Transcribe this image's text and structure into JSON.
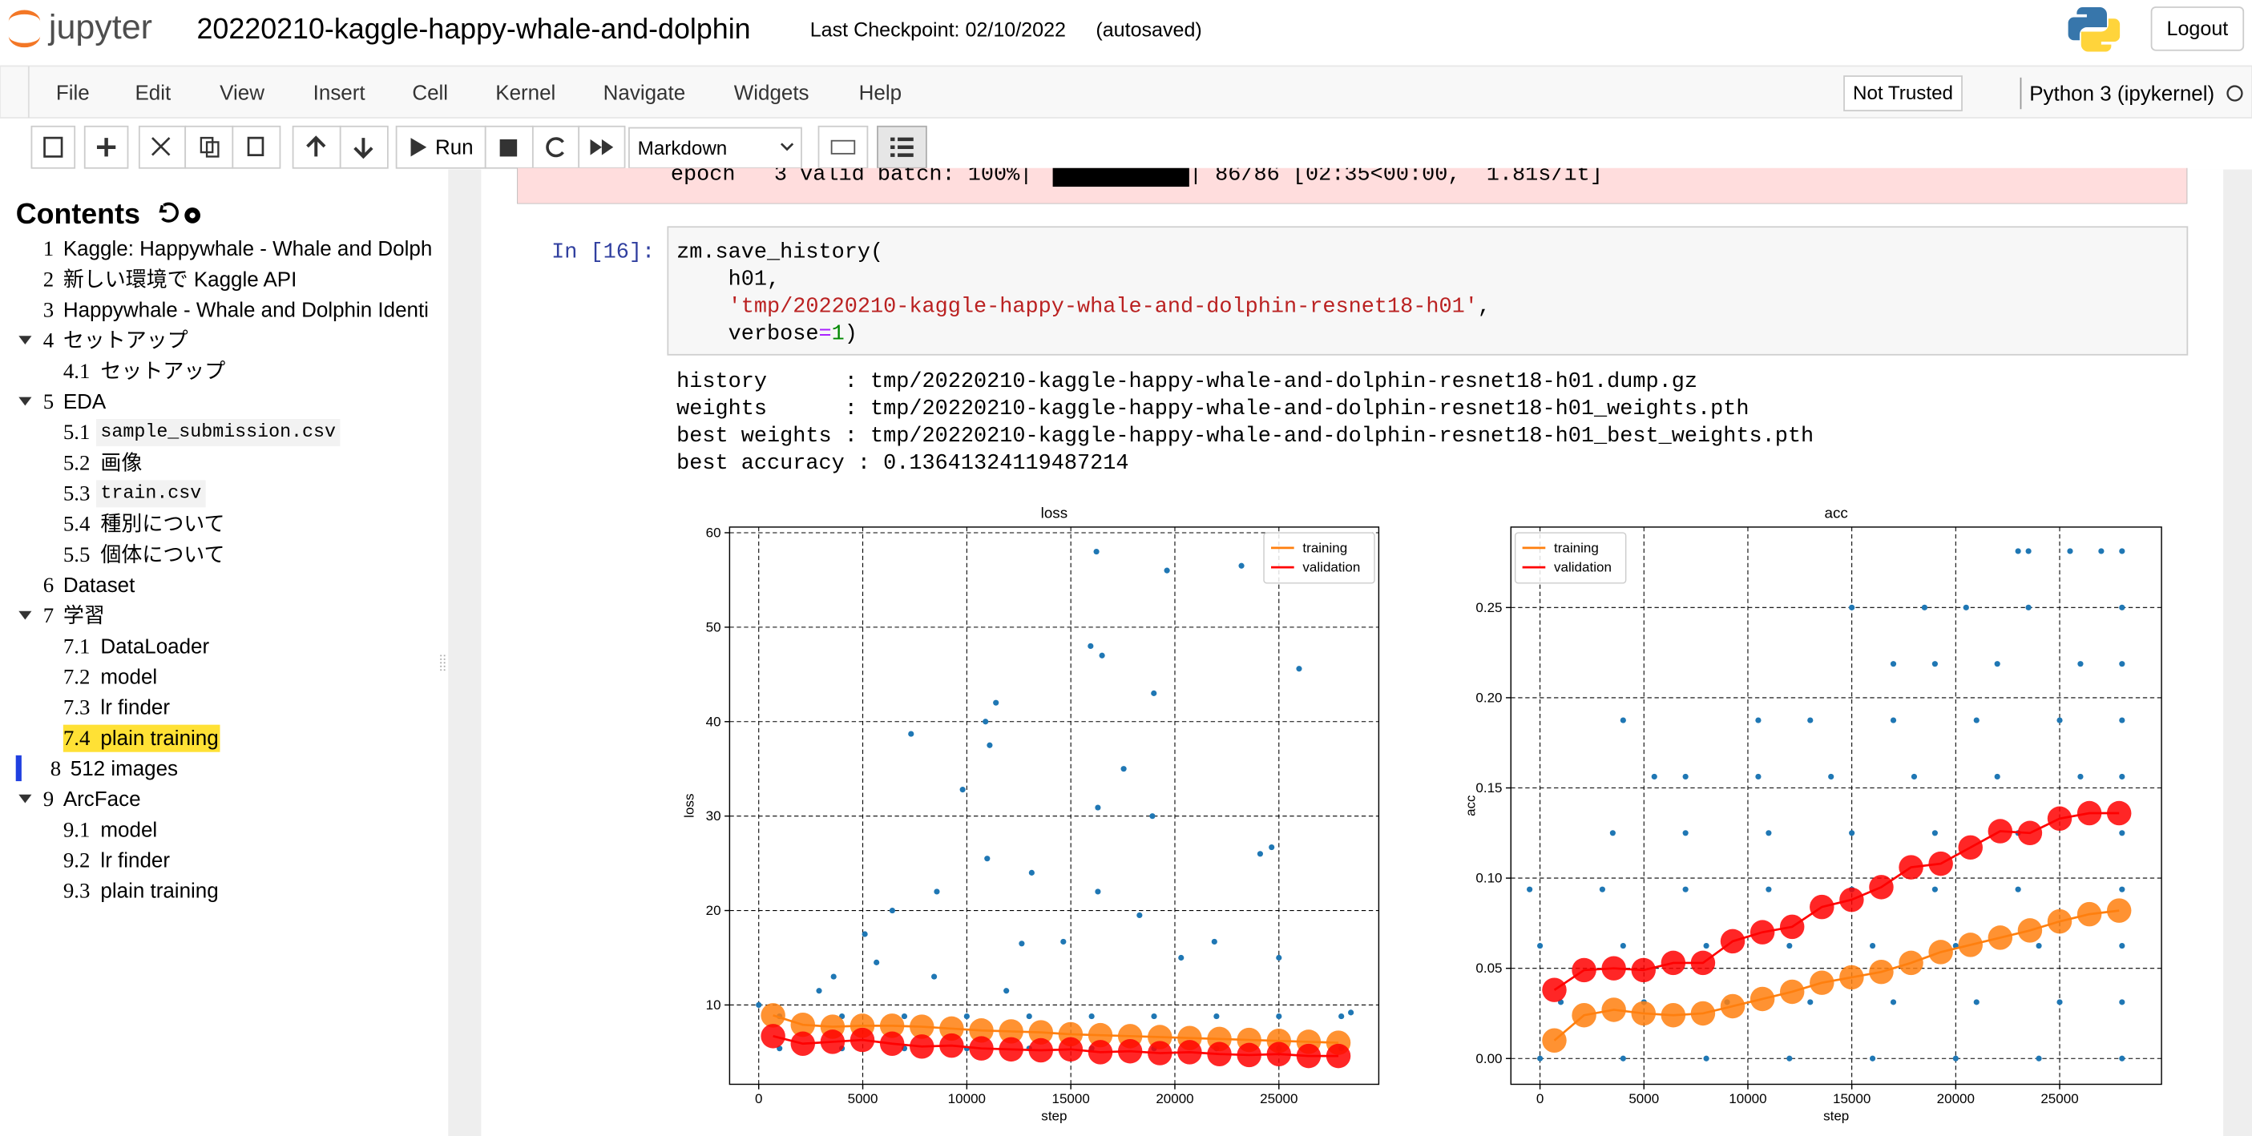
{
  "header": {
    "logo": "jupyter",
    "title": "20220210-kaggle-happy-whale-and-dolphin",
    "checkpoint": "Last Checkpoint: 02/10/2022",
    "autosaved": "(autosaved)",
    "logout": "Logout"
  },
  "menu": [
    "File",
    "Edit",
    "View",
    "Insert",
    "Cell",
    "Kernel",
    "Navigate",
    "Widgets",
    "Help"
  ],
  "status": {
    "trusted": "Not Trusted",
    "kernel": "Python 3 (ipykernel)"
  },
  "toolbar": {
    "run": "Run",
    "cell_type": "Markdown"
  },
  "toc": {
    "title": "Contents",
    "items": [
      {
        "num": "1",
        "label": "Kaggle: Happywhale - Whale and Dolph"
      },
      {
        "num": "2",
        "label": "新しい環境で Kaggle API"
      },
      {
        "num": "3",
        "label": "Happywhale - Whale and Dolphin Identi"
      },
      {
        "num": "4",
        "label": "セットアップ",
        "children": [
          {
            "num": "4.1",
            "label": "セットアップ"
          }
        ]
      },
      {
        "num": "5",
        "label": "EDA",
        "children": [
          {
            "num": "5.1",
            "label": "sample_submission.csv",
            "code": true
          },
          {
            "num": "5.2",
            "label": "画像"
          },
          {
            "num": "5.3",
            "label": "train.csv",
            "code": true
          },
          {
            "num": "5.4",
            "label": "種別について"
          },
          {
            "num": "5.5",
            "label": "個体について"
          }
        ]
      },
      {
        "num": "6",
        "label": "Dataset"
      },
      {
        "num": "7",
        "label": "学習",
        "children": [
          {
            "num": "7.1",
            "label": "DataLoader"
          },
          {
            "num": "7.2",
            "label": "model"
          },
          {
            "num": "7.3",
            "label": "lr finder"
          },
          {
            "num": "7.4",
            "label": "plain training",
            "highlight": true
          }
        ]
      },
      {
        "num": "8",
        "label": "512 images",
        "current": true
      },
      {
        "num": "9",
        "label": "ArcFace",
        "children": [
          {
            "num": "9.1",
            "label": "model"
          },
          {
            "num": "9.2",
            "label": "lr finder"
          },
          {
            "num": "9.3",
            "label": "plain training"
          }
        ]
      }
    ]
  },
  "prev_output": {
    "text": "epoch   3 valid batch: 100%|",
    "tail": "| 86/86 [02:35<00:00,  1.81s/it]"
  },
  "cell": {
    "prompt": "In [16]:",
    "code": [
      [
        "zm.save_history("
      ],
      [
        "h01,"
      ],
      [
        "'tmp/20220210-kaggle-happy-whale-and-dolphin-resnet18-h01'",
        ","
      ],
      [
        "verbose",
        "=",
        "1",
        ")"
      ]
    ]
  },
  "output": [
    "history      : tmp/20220210-kaggle-happy-whale-and-dolphin-resnet18-h01.dump.gz",
    "weights      : tmp/20220210-kaggle-happy-whale-and-dolphin-resnet18-h01_weights.pth",
    "best weights : tmp/20220210-kaggle-happy-whale-and-dolphin-resnet18-h01_best_weights.pth",
    "best accuracy : 0.13641324119487214"
  ],
  "chart_data": [
    {
      "type": "scatter",
      "title": "loss",
      "xlabel": "step",
      "ylabel": "loss",
      "xlim": [
        -1400,
        29800
      ],
      "ylim": [
        1.6,
        60.6
      ],
      "xticks": [
        0,
        5000,
        10000,
        15000,
        20000,
        25000
      ],
      "yticks": [
        10,
        20,
        30,
        40,
        50,
        60
      ],
      "grid": true,
      "legend": "upper right",
      "series": [
        {
          "style": "dots",
          "color": "#1f77b4",
          "x": [
            16230,
            19620,
            23200,
            25970,
            15950,
            16500,
            18990,
            11400,
            10900,
            7320,
            11100,
            17540,
            9800,
            16300,
            18920,
            24650,
            24100,
            10980,
            13120,
            8560,
            16300,
            18300,
            6420,
            12640,
            14640,
            20300,
            25000,
            21900,
            5100,
            3600,
            2900,
            5660,
            8430,
            11900,
            28460,
            0,
            1000,
            4000,
            7000,
            10000,
            13000,
            16000,
            19000,
            22000,
            25000,
            28000,
            1000,
            4000,
            7000,
            10000,
            13000,
            16000,
            19000,
            22000,
            25000,
            28000
          ],
          "values": [
            58,
            56,
            56.5,
            45.6,
            48,
            47,
            43,
            42,
            40,
            38.7,
            37.5,
            35,
            32.8,
            30.9,
            30,
            26.7,
            26,
            25.5,
            24,
            22,
            22,
            19.5,
            20,
            16.5,
            16.7,
            15,
            15,
            16.7,
            17.5,
            13,
            11.5,
            14.5,
            13,
            11.5,
            9.2,
            10,
            8.8,
            8.8,
            8.8,
            8.8,
            8.8,
            8.8,
            8.8,
            8.8,
            8.8,
            8.8,
            5.4,
            5.4,
            5.4,
            5.4,
            5.4,
            5.4,
            5.4,
            5.4,
            5.4,
            5.4
          ]
        },
        {
          "name": "training",
          "style": "line",
          "color": "#ff7f0e",
          "x": [
            690,
            2120,
            3550,
            4980,
            6410,
            7840,
            9270,
            10700,
            12130,
            13560,
            14990,
            16420,
            17850,
            19280,
            20710,
            22140,
            23570,
            25000,
            26430,
            27860
          ],
          "values": [
            8.9,
            7.9,
            7.7,
            7.8,
            7.8,
            7.7,
            7.5,
            7.3,
            7.2,
            7.1,
            6.9,
            6.8,
            6.7,
            6.6,
            6.5,
            6.4,
            6.3,
            6.2,
            6.1,
            6.0
          ]
        },
        {
          "name": "validation",
          "style": "line",
          "color": "#ff0000",
          "x": [
            690,
            2120,
            3550,
            4980,
            6410,
            7840,
            9270,
            10700,
            12130,
            13560,
            14990,
            16420,
            17850,
            19280,
            20710,
            22140,
            23570,
            25000,
            26430,
            27860
          ],
          "values": [
            6.7,
            5.9,
            6.1,
            6.3,
            5.9,
            5.6,
            5.7,
            5.4,
            5.3,
            5.2,
            5.3,
            5.0,
            5.1,
            4.9,
            5.0,
            4.8,
            4.7,
            4.8,
            4.6,
            4.6
          ]
        }
      ]
    },
    {
      "type": "scatter",
      "title": "acc",
      "xlabel": "step",
      "ylabel": "acc",
      "xlim": [
        -1400,
        29900
      ],
      "ylim": [
        -0.0143,
        0.2946
      ],
      "xticks": [
        0,
        5000,
        10000,
        15000,
        20000,
        25000
      ],
      "yticks": [
        {
          "value": 0,
          "label": "0.00"
        },
        {
          "value": 0.05,
          "label": "0.05"
        },
        {
          "value": 0.1,
          "label": "0.10"
        },
        {
          "value": 0.15,
          "label": "0.15"
        },
        {
          "value": 0.2,
          "label": "0.20"
        },
        {
          "value": 0.25,
          "label": "0.25"
        }
      ],
      "grid": true,
      "legend": "upper left",
      "series": [
        {
          "style": "dots",
          "color": "#1f77b4",
          "x": [
            0,
            4000,
            8000,
            12000,
            16000,
            20000,
            24000,
            28000,
            1000,
            5000,
            9000,
            13000,
            17000,
            21000,
            25000,
            28000,
            0,
            4000,
            8000,
            12000,
            16000,
            20000,
            24000,
            28000,
            -500,
            3000,
            7000,
            11000,
            15000,
            19000,
            23000,
            28000,
            3500,
            7000,
            11000,
            15000,
            19000,
            23000,
            28000,
            5500,
            7000,
            10500,
            14000,
            18000,
            22000,
            26000,
            28000,
            4000,
            10500,
            13000,
            17000,
            21000,
            25000,
            28000,
            17000,
            19000,
            22000,
            26000,
            28000,
            15000,
            18500,
            20500,
            23500,
            28000,
            23000,
            23500,
            25500,
            27000,
            28000
          ],
          "values": [
            0,
            0,
            0,
            0,
            0,
            0,
            0,
            0,
            0.03125,
            0.03125,
            0.03125,
            0.03125,
            0.03125,
            0.03125,
            0.03125,
            0.03125,
            0.0625,
            0.0625,
            0.0625,
            0.0625,
            0.0625,
            0.0625,
            0.0625,
            0.0625,
            0.09375,
            0.09375,
            0.09375,
            0.09375,
            0.09375,
            0.09375,
            0.09375,
            0.09375,
            0.125,
            0.125,
            0.125,
            0.125,
            0.125,
            0.125,
            0.125,
            0.15625,
            0.15625,
            0.15625,
            0.15625,
            0.15625,
            0.15625,
            0.15625,
            0.15625,
            0.1875,
            0.1875,
            0.1875,
            0.1875,
            0.1875,
            0.1875,
            0.1875,
            0.21875,
            0.21875,
            0.21875,
            0.21875,
            0.21875,
            0.25,
            0.25,
            0.25,
            0.25,
            0.25,
            0.28125,
            0.28125,
            0.28125,
            0.28125,
            0.28125
          ]
        },
        {
          "name": "training",
          "style": "line",
          "color": "#ff7f0e",
          "x": [
            690,
            2120,
            3550,
            4980,
            6410,
            7840,
            9270,
            10700,
            12130,
            13560,
            14990,
            16420,
            17850,
            19280,
            20710,
            22140,
            23570,
            25000,
            26430,
            27860
          ],
          "values": [
            0.01,
            0.024,
            0.027,
            0.025,
            0.024,
            0.025,
            0.029,
            0.033,
            0.037,
            0.042,
            0.045,
            0.048,
            0.053,
            0.059,
            0.063,
            0.067,
            0.071,
            0.076,
            0.08,
            0.082
          ]
        },
        {
          "name": "validation",
          "style": "line",
          "color": "#ff0000",
          "x": [
            690,
            2120,
            3550,
            4980,
            6410,
            7840,
            9270,
            10700,
            12130,
            13560,
            14990,
            16420,
            17850,
            19280,
            20710,
            22140,
            23570,
            25000,
            26430,
            27860
          ],
          "values": [
            0.038,
            0.049,
            0.05,
            0.049,
            0.053,
            0.053,
            0.065,
            0.07,
            0.073,
            0.084,
            0.088,
            0.095,
            0.106,
            0.108,
            0.117,
            0.126,
            0.125,
            0.133,
            0.136,
            0.136
          ]
        }
      ]
    }
  ]
}
